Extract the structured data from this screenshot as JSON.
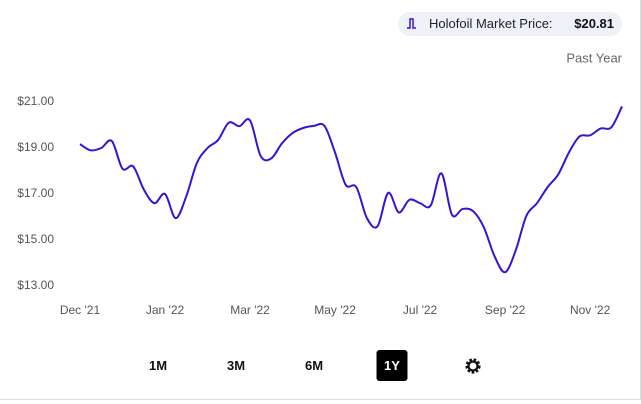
{
  "header": {
    "label": "Holofoil Market Price:",
    "price": "$20.81"
  },
  "range_label": "Past Year",
  "controls": {
    "buttons": [
      "1M",
      "3M",
      "6M",
      "1Y"
    ],
    "selected": 3
  },
  "chart_data": {
    "type": "line",
    "categories": [
      "Dec '21",
      null,
      null,
      null,
      null,
      null,
      null,
      null,
      "Jan '22",
      null,
      null,
      null,
      null,
      null,
      null,
      null,
      "Mar '22",
      null,
      null,
      null,
      null,
      null,
      null,
      null,
      "May '22",
      null,
      null,
      null,
      null,
      null,
      null,
      null,
      "Jul '22",
      null,
      null,
      null,
      null,
      null,
      null,
      null,
      "Sep '22",
      null,
      null,
      null,
      null,
      null,
      null,
      null,
      "Nov '22",
      null,
      null,
      null
    ],
    "series": [
      {
        "name": "Holofoil Market Price",
        "color": "#3a12d4",
        "values": [
          19.17,
          18.9,
          19.0,
          19.3,
          18.1,
          18.2,
          17.2,
          16.6,
          17.0,
          15.95,
          16.9,
          18.35,
          19.0,
          19.35,
          20.1,
          19.95,
          20.2,
          18.65,
          18.55,
          19.2,
          19.65,
          19.87,
          19.96,
          19.96,
          18.8,
          17.4,
          17.3,
          15.95,
          15.6,
          17.05,
          16.2,
          16.75,
          16.6,
          16.5,
          17.9,
          16.1,
          16.35,
          16.25,
          15.55,
          14.3,
          13.6,
          14.55,
          16.05,
          16.6,
          17.3,
          17.85,
          18.8,
          19.5,
          19.55,
          19.85,
          19.9,
          20.81
        ]
      }
    ],
    "ylim": [
      12.6,
      21.6
    ],
    "yticks": [
      {
        "value": 13,
        "label": "$13.00"
      },
      {
        "value": 15,
        "label": "$15.00"
      },
      {
        "value": 17,
        "label": "$17.00"
      },
      {
        "value": 19,
        "label": "$19.00"
      },
      {
        "value": 21,
        "label": "$21.00"
      }
    ],
    "grid": false
  }
}
